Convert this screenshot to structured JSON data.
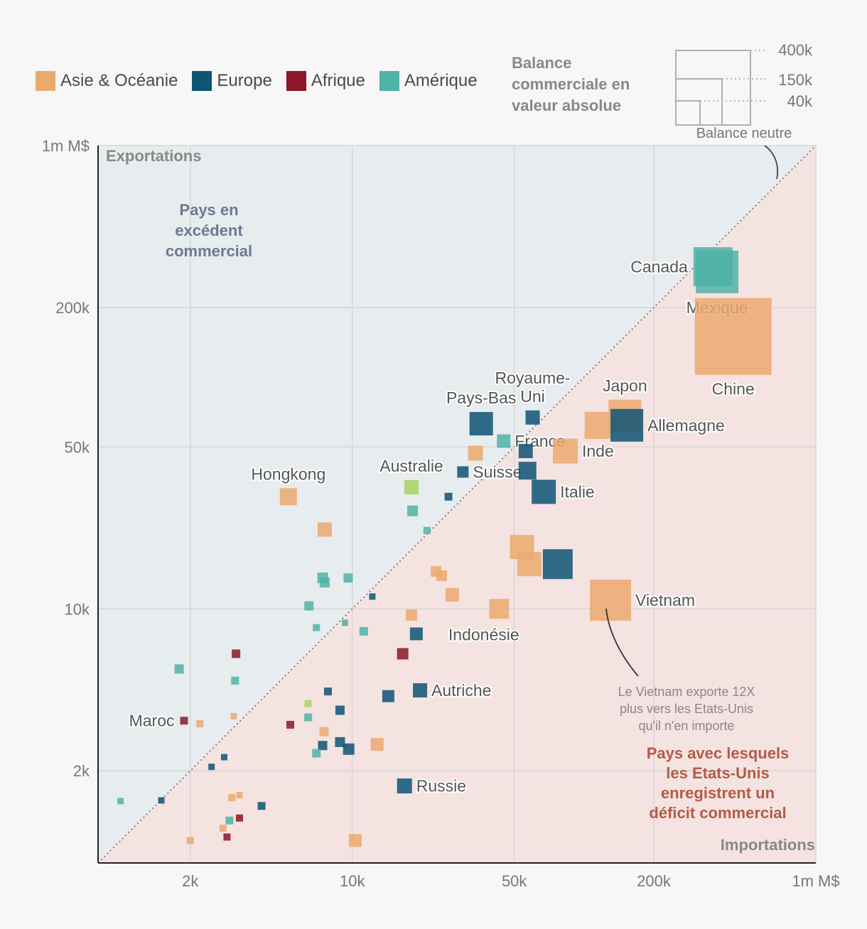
{
  "legend": [
    {
      "label": "Asie & Océanie",
      "color": "#eba96e"
    },
    {
      "label": "Europe",
      "color": "#0d5475"
    },
    {
      "label": "Afrique",
      "color": "#8b1727"
    },
    {
      "label": "Amérique",
      "color": "#4fb3a7"
    }
  ],
  "size_legend": {
    "title": "Balance commerciale en valeur absolue",
    "values": [
      "400k",
      "150k",
      "40k"
    ]
  },
  "labels": {
    "neutral": "Balance neutre",
    "exports_axis": "Exportations",
    "imports_axis": "Importations",
    "surplus": [
      "Pays en",
      "excédent",
      "commercial"
    ],
    "deficit": [
      "Pays avec lesquels",
      "les Etats-Unis",
      "enregistrent un",
      "déficit commercial"
    ],
    "vietnam_note": [
      "Le Vietnam exporte 12X",
      "plus vers les Etats-Unis",
      "qu'il n'en importe"
    ]
  },
  "chart_data": {
    "type": "scatter",
    "title": "",
    "xlabel": "Importations",
    "ylabel": "Exportations",
    "scale": "log",
    "xlim": [
      800,
      1000000
    ],
    "ylim": [
      800,
      1000000
    ],
    "x_ticks": [
      {
        "v": 2000,
        "label": "2k"
      },
      {
        "v": 10000,
        "label": "10k"
      },
      {
        "v": 50000,
        "label": "50k"
      },
      {
        "v": 200000,
        "label": "200k"
      },
      {
        "v": 1000000,
        "label": "1m M$"
      }
    ],
    "y_ticks": [
      {
        "v": 2000,
        "label": "2k"
      },
      {
        "v": 10000,
        "label": "10k"
      },
      {
        "v": 50000,
        "label": "50k"
      },
      {
        "v": 200000,
        "label": "200k"
      },
      {
        "v": 1000000,
        "label": "1m M$"
      }
    ],
    "points": [
      {
        "name": "Canada",
        "region": "amerique",
        "x": 360000,
        "y": 300000,
        "size": 55,
        "color": "#4fb3a7",
        "label_pos": "left"
      },
      {
        "name": "Mexique",
        "region": "amerique",
        "x": 375000,
        "y": 285000,
        "size": 60,
        "color": "#4fb3a7",
        "label_pos": "below"
      },
      {
        "name": "Chine",
        "region": "asie",
        "x": 440000,
        "y": 150000,
        "size": 108,
        "color": "#eba96e",
        "label_pos": "below"
      },
      {
        "name": "Japon",
        "region": "asie",
        "x": 150000,
        "y": 68000,
        "size": 46,
        "color": "#eba96e",
        "label_pos": "above"
      },
      {
        "name": "",
        "region": "asie",
        "x": 115000,
        "y": 62000,
        "size": 38,
        "color": "#eba96e"
      },
      {
        "name": "Allemagne",
        "region": "europe",
        "x": 153000,
        "y": 62000,
        "size": 46,
        "color": "#0d5475",
        "label_pos": "right"
      },
      {
        "name": "Royaume-Uni",
        "region": "europe",
        "x": 60000,
        "y": 67000,
        "size": 20,
        "color": "#0d5475",
        "label_pos": "above"
      },
      {
        "name": "Pays-Bas",
        "region": "europe",
        "x": 36000,
        "y": 63000,
        "size": 33,
        "color": "#0d5475",
        "label_pos": "above"
      },
      {
        "name": "France",
        "region": "amerique",
        "x": 45000,
        "y": 53000,
        "size": 19,
        "color": "#4fb3a7",
        "label_pos": "right"
      },
      {
        "name": "",
        "region": "asie",
        "x": 34000,
        "y": 47000,
        "size": 21,
        "color": "#eba96e"
      },
      {
        "name": "",
        "region": "europe",
        "x": 56000,
        "y": 48000,
        "size": 20,
        "color": "#0d5475"
      },
      {
        "name": "Inde",
        "region": "asie",
        "x": 83000,
        "y": 48000,
        "size": 35,
        "color": "#eba96e",
        "label_pos": "right"
      },
      {
        "name": "Suisse",
        "region": "europe",
        "x": 30000,
        "y": 39000,
        "size": 16,
        "color": "#0d5475",
        "label_pos": "right"
      },
      {
        "name": "",
        "region": "europe",
        "x": 57000,
        "y": 39500,
        "size": 25,
        "color": "#0d5475"
      },
      {
        "name": "Italie",
        "region": "europe",
        "x": 67000,
        "y": 32000,
        "size": 34,
        "color": "#0d5475",
        "label_pos": "right"
      },
      {
        "name": "Australie",
        "region": "amerique",
        "x": 18000,
        "y": 33500,
        "size": 20,
        "color": "#a8d35d",
        "label_pos": "above"
      },
      {
        "name": "Hongkong",
        "region": "asie",
        "x": 5300,
        "y": 30500,
        "size": 24,
        "color": "#eba96e",
        "label_pos": "above"
      },
      {
        "name": "",
        "region": "europe",
        "x": 26000,
        "y": 30500,
        "size": 11,
        "color": "#0d5475"
      },
      {
        "name": "",
        "region": "amerique",
        "x": 18200,
        "y": 26500,
        "size": 15,
        "color": "#4fb3a7"
      },
      {
        "name": "",
        "region": "asie",
        "x": 7600,
        "y": 22000,
        "size": 20,
        "color": "#eba96e"
      },
      {
        "name": "",
        "region": "amerique",
        "x": 21000,
        "y": 21800,
        "size": 10,
        "color": "#4fb3a7"
      },
      {
        "name": "",
        "region": "asie",
        "x": 54000,
        "y": 18500,
        "size": 34,
        "color": "#eba96e"
      },
      {
        "name": "",
        "region": "asie",
        "x": 58000,
        "y": 15600,
        "size": 34,
        "color": "#eba96e"
      },
      {
        "name": "",
        "region": "europe",
        "x": 77000,
        "y": 15600,
        "size": 42,
        "color": "#0d5475"
      },
      {
        "name": "",
        "region": "asie",
        "x": 23000,
        "y": 14500,
        "size": 15,
        "color": "#eba96e"
      },
      {
        "name": "",
        "region": "asie",
        "x": 24300,
        "y": 13900,
        "size": 15,
        "color": "#eba96e"
      },
      {
        "name": "",
        "region": "amerique",
        "x": 7450,
        "y": 13600,
        "size": 15,
        "color": "#4fb3a7"
      },
      {
        "name": "",
        "region": "amerique",
        "x": 9600,
        "y": 13600,
        "size": 13,
        "color": "#4fb3a7"
      },
      {
        "name": "",
        "region": "amerique",
        "x": 7600,
        "y": 13000,
        "size": 14,
        "color": "#4fb3a7"
      },
      {
        "name": "",
        "region": "asie",
        "x": 27000,
        "y": 11500,
        "size": 19,
        "color": "#eba96e"
      },
      {
        "name": "",
        "region": "europe",
        "x": 12200,
        "y": 11300,
        "size": 9,
        "color": "#0d5475"
      },
      {
        "name": "Vietnam",
        "region": "asie",
        "x": 130000,
        "y": 10900,
        "size": 58,
        "color": "#eba96e",
        "label_pos": "right"
      },
      {
        "name": "",
        "region": "amerique",
        "x": 6500,
        "y": 10300,
        "size": 13,
        "color": "#4fb3a7"
      },
      {
        "name": "",
        "region": "asie",
        "x": 43000,
        "y": 10000,
        "size": 28,
        "color": "#eba96e"
      },
      {
        "name": "",
        "region": "asie",
        "x": 18000,
        "y": 9400,
        "size": 16,
        "color": "#eba96e"
      },
      {
        "name": "",
        "region": "amerique",
        "x": 9300,
        "y": 8700,
        "size": 9,
        "color": "#4fb3a7"
      },
      {
        "name": "",
        "region": "amerique",
        "x": 7000,
        "y": 8300,
        "size": 10,
        "color": "#4fb3a7"
      },
      {
        "name": "",
        "region": "amerique",
        "x": 11200,
        "y": 8000,
        "size": 12,
        "color": "#4fb3a7"
      },
      {
        "name": "Indonésie",
        "region": "europe",
        "x": 18900,
        "y": 7800,
        "size": 18,
        "color": "#0d5475",
        "label_pos": "right_below"
      },
      {
        "name": "",
        "region": "afrique",
        "x": 16500,
        "y": 6400,
        "size": 16,
        "color": "#8b1727"
      },
      {
        "name": "",
        "region": "afrique",
        "x": 3150,
        "y": 6400,
        "size": 12,
        "color": "#8b1727"
      },
      {
        "name": "",
        "region": "amerique",
        "x": 1790,
        "y": 5500,
        "size": 13,
        "color": "#4fb3a7"
      },
      {
        "name": "",
        "region": "amerique",
        "x": 3120,
        "y": 4900,
        "size": 11,
        "color": "#4fb3a7"
      },
      {
        "name": "Autriche",
        "region": "europe",
        "x": 19600,
        "y": 4450,
        "size": 20,
        "color": "#0d5475",
        "label_pos": "right"
      },
      {
        "name": "",
        "region": "europe",
        "x": 7850,
        "y": 4400,
        "size": 11,
        "color": "#0d5475"
      },
      {
        "name": "",
        "region": "europe",
        "x": 14300,
        "y": 4200,
        "size": 17,
        "color": "#0d5475"
      },
      {
        "name": "",
        "region": "amerique",
        "x": 6450,
        "y": 3900,
        "size": 10,
        "color": "#a8d35d"
      },
      {
        "name": "",
        "region": "europe",
        "x": 8850,
        "y": 3650,
        "size": 13,
        "color": "#0d5475"
      },
      {
        "name": "Maroc",
        "region": "afrique",
        "x": 1880,
        "y": 3290,
        "size": 11,
        "color": "#8b1727",
        "label_pos": "left"
      },
      {
        "name": "",
        "region": "asie",
        "x": 3080,
        "y": 3440,
        "size": 9,
        "color": "#eba96e"
      },
      {
        "name": "",
        "region": "amerique",
        "x": 6450,
        "y": 3400,
        "size": 11,
        "color": "#4fb3a7"
      },
      {
        "name": "",
        "region": "asie",
        "x": 2200,
        "y": 3190,
        "size": 10,
        "color": "#eba96e"
      },
      {
        "name": "",
        "region": "afrique",
        "x": 5400,
        "y": 3160,
        "size": 11,
        "color": "#8b1727"
      },
      {
        "name": "",
        "region": "asie",
        "x": 7550,
        "y": 2950,
        "size": 13,
        "color": "#eba96e"
      },
      {
        "name": "",
        "region": "europe",
        "x": 8850,
        "y": 2660,
        "size": 14,
        "color": "#0d5475"
      },
      {
        "name": "",
        "region": "asie",
        "x": 12800,
        "y": 2600,
        "size": 18,
        "color": "#eba96e"
      },
      {
        "name": "",
        "region": "europe",
        "x": 7450,
        "y": 2570,
        "size": 13,
        "color": "#0d5475"
      },
      {
        "name": "",
        "region": "europe",
        "x": 9650,
        "y": 2480,
        "size": 16,
        "color": "#0d5475"
      },
      {
        "name": "",
        "region": "amerique",
        "x": 7000,
        "y": 2380,
        "size": 12,
        "color": "#4fb3a7"
      },
      {
        "name": "",
        "region": "europe",
        "x": 2800,
        "y": 2290,
        "size": 9,
        "color": "#0d5475"
      },
      {
        "name": "",
        "region": "europe",
        "x": 2470,
        "y": 2080,
        "size": 9,
        "color": "#0d5475"
      },
      {
        "name": "Russie",
        "region": "europe",
        "x": 16800,
        "y": 1720,
        "size": 21,
        "color": "#0d5475",
        "label_pos": "right"
      },
      {
        "name": "",
        "region": "asie",
        "x": 3260,
        "y": 1570,
        "size": 9,
        "color": "#eba96e"
      },
      {
        "name": "",
        "region": "asie",
        "x": 3020,
        "y": 1530,
        "size": 10,
        "color": "#eba96e"
      },
      {
        "name": "",
        "region": "amerique",
        "x": 1000,
        "y": 1480,
        "size": 9,
        "color": "#4fb3a7"
      },
      {
        "name": "",
        "region": "europe",
        "x": 1500,
        "y": 1490,
        "size": 9,
        "color": "#0d5475"
      },
      {
        "name": "",
        "region": "europe",
        "x": 4060,
        "y": 1410,
        "size": 11,
        "color": "#0d5475"
      },
      {
        "name": "",
        "region": "afrique",
        "x": 3260,
        "y": 1250,
        "size": 10,
        "color": "#8b1727"
      },
      {
        "name": "",
        "region": "amerique",
        "x": 2950,
        "y": 1220,
        "size": 11,
        "color": "#4fb3a7"
      },
      {
        "name": "",
        "region": "asie",
        "x": 2770,
        "y": 1130,
        "size": 10,
        "color": "#eba96e"
      },
      {
        "name": "",
        "region": "afrique",
        "x": 2880,
        "y": 1035,
        "size": 10,
        "color": "#8b1727"
      },
      {
        "name": "",
        "region": "asie",
        "x": 2000,
        "y": 1000,
        "size": 10,
        "color": "#eba96e"
      },
      {
        "name": "",
        "region": "asie",
        "x": 10300,
        "y": 1000,
        "size": 18,
        "color": "#eba96e"
      }
    ]
  }
}
